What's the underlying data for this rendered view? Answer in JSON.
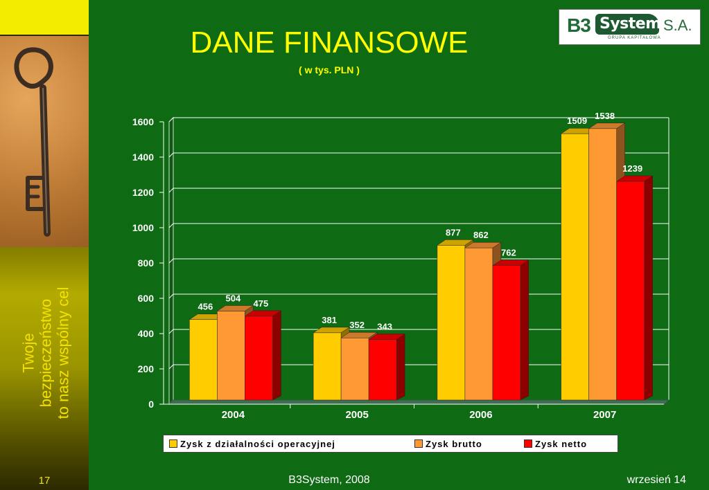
{
  "title": "DANE FINANSOWE",
  "subtitle": "( w tys. PLN )",
  "logo": {
    "b3": "B3",
    "system": "System",
    "sa": "S.A.",
    "tagline": "GRUPA KAPITAŁOWA"
  },
  "slogan": [
    "Twoje",
    "bezpieczeństwo",
    "to nasz wspólny cel"
  ],
  "footer": {
    "page_number": "17",
    "center": "B3System, 2008",
    "right": "wrzesień 14"
  },
  "colors": {
    "background": "#0e6b14",
    "title": "#ffff00"
  },
  "chart_data": {
    "type": "bar",
    "title": "",
    "xlabel": "",
    "ylabel": "",
    "categories": [
      "2004",
      "2005",
      "2006",
      "2007"
    ],
    "ylim": [
      0,
      1600
    ],
    "yticks": [
      0,
      200,
      400,
      600,
      800,
      1000,
      1200,
      1400,
      1600
    ],
    "grid": true,
    "legend_position": "bottom",
    "series": [
      {
        "name": "Zysk z działalności operacyjnej",
        "values": [
          456,
          381,
          877,
          1509
        ],
        "color": "#ffcc00"
      },
      {
        "name": "Zysk brutto",
        "values": [
          504,
          352,
          862,
          1538
        ],
        "color": "#ff9933"
      },
      {
        "name": "Zysk netto",
        "values": [
          475,
          343,
          762,
          1239
        ],
        "color": "#ff0000"
      }
    ]
  }
}
